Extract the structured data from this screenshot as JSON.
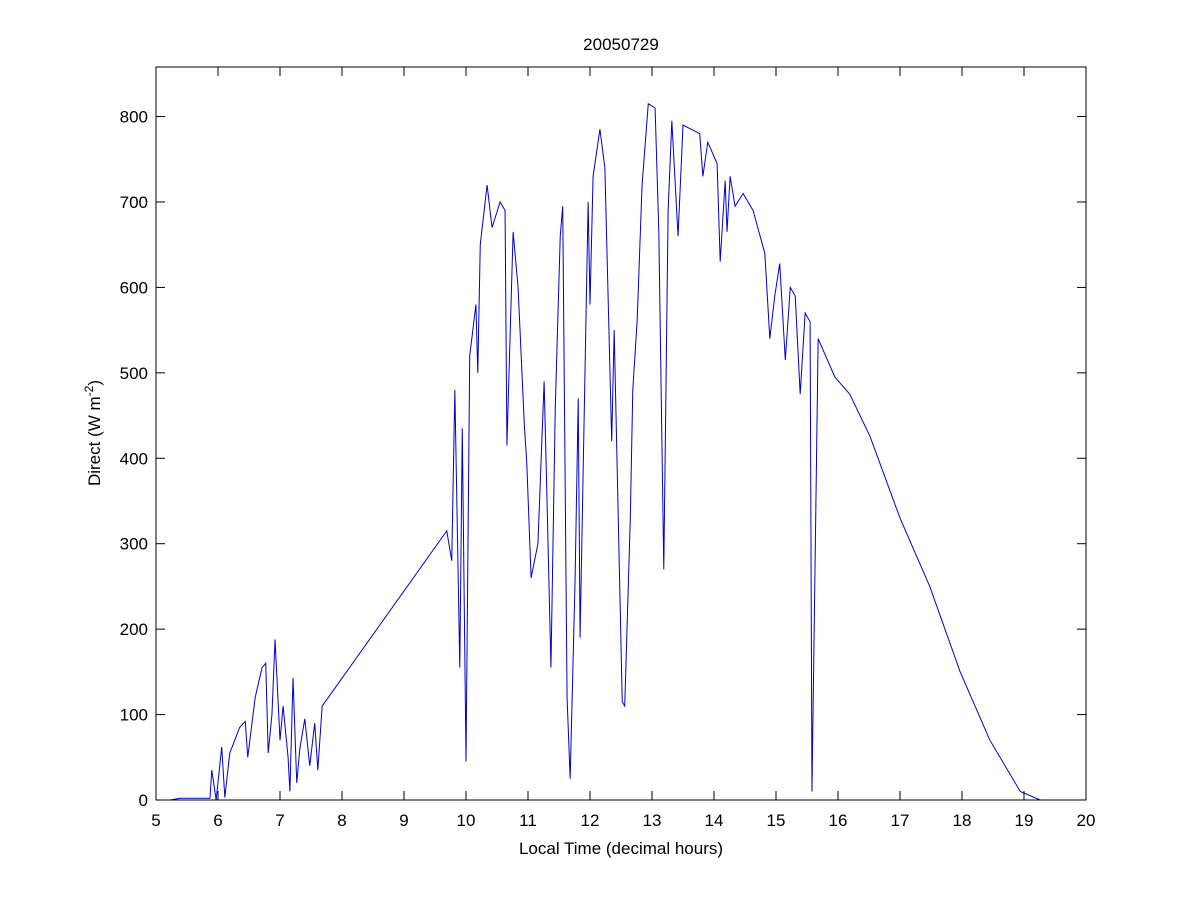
{
  "chart_data": {
    "type": "line",
    "title": "20050729",
    "xlabel": "Local Time (decimal hours)",
    "ylabel": {
      "text": "Direct (W m",
      "superscript": "-2",
      "suffix": ")"
    },
    "xlim": [
      5,
      20
    ],
    "ylim": [
      0,
      858
    ],
    "xticks": [
      5,
      6,
      7,
      8,
      9,
      10,
      11,
      12,
      13,
      14,
      15,
      16,
      17,
      18,
      19,
      20
    ],
    "yticks": [
      0,
      100,
      200,
      300,
      400,
      500,
      600,
      700,
      800
    ],
    "grid": false,
    "series": [
      {
        "color": "#0000cc",
        "x": [
          5.23,
          5.39,
          5.87,
          5.9,
          5.97,
          6.06,
          6.11,
          6.19,
          6.35,
          6.44,
          6.48,
          6.6,
          6.71,
          6.77,
          6.81,
          6.87,
          6.92,
          7.0,
          7.05,
          7.13,
          7.16,
          7.21,
          7.27,
          7.32,
          7.4,
          7.48,
          7.56,
          7.61,
          7.68,
          9.69,
          9.77,
          9.82,
          9.9,
          9.94,
          10.0,
          10.06,
          10.16,
          10.19,
          10.23,
          10.34,
          10.42,
          10.55,
          10.63,
          10.66,
          10.76,
          10.84,
          10.94,
          10.98,
          11.05,
          11.16,
          11.26,
          11.31,
          11.37,
          11.44,
          11.52,
          11.56,
          11.63,
          11.68,
          11.76,
          11.81,
          11.84,
          11.97,
          12.0,
          12.05,
          12.16,
          12.24,
          12.35,
          12.39,
          12.52,
          12.56,
          12.65,
          12.69,
          12.76,
          12.84,
          12.94,
          13.05,
          13.11,
          13.19,
          13.26,
          13.32,
          13.42,
          13.5,
          13.77,
          13.82,
          13.9,
          14.05,
          14.1,
          14.18,
          14.21,
          14.26,
          14.34,
          14.47,
          14.63,
          14.82,
          14.9,
          14.98,
          15.06,
          15.15,
          15.23,
          15.31,
          15.39,
          15.47,
          15.55,
          15.58,
          15.68,
          15.95,
          16.19,
          16.52,
          17.0,
          17.48,
          17.97,
          18.45,
          18.94,
          19.26,
          19.34
        ],
        "values": [
          0,
          2,
          2,
          35,
          0,
          62,
          3,
          55,
          85,
          92,
          50,
          120,
          155,
          160,
          55,
          100,
          188,
          70,
          110,
          50,
          10,
          143,
          20,
          60,
          95,
          40,
          90,
          35,
          110,
          315,
          280,
          480,
          155,
          435,
          45,
          520,
          580,
          500,
          650,
          720,
          670,
          700,
          690,
          415,
          665,
          600,
          440,
          395,
          260,
          300,
          490,
          340,
          155,
          460,
          660,
          695,
          120,
          25,
          260,
          470,
          190,
          700,
          580,
          730,
          785,
          740,
          420,
          550,
          115,
          110,
          330,
          480,
          560,
          720,
          815,
          810,
          665,
          270,
          690,
          795,
          660,
          790,
          780,
          730,
          770,
          745,
          630,
          725,
          665,
          730,
          695,
          710,
          690,
          640,
          540,
          590,
          628,
          515,
          600,
          590,
          475,
          570,
          560,
          10,
          540,
          495,
          475,
          425,
          330,
          250,
          150,
          70,
          10,
          0,
          0
        ]
      }
    ]
  }
}
